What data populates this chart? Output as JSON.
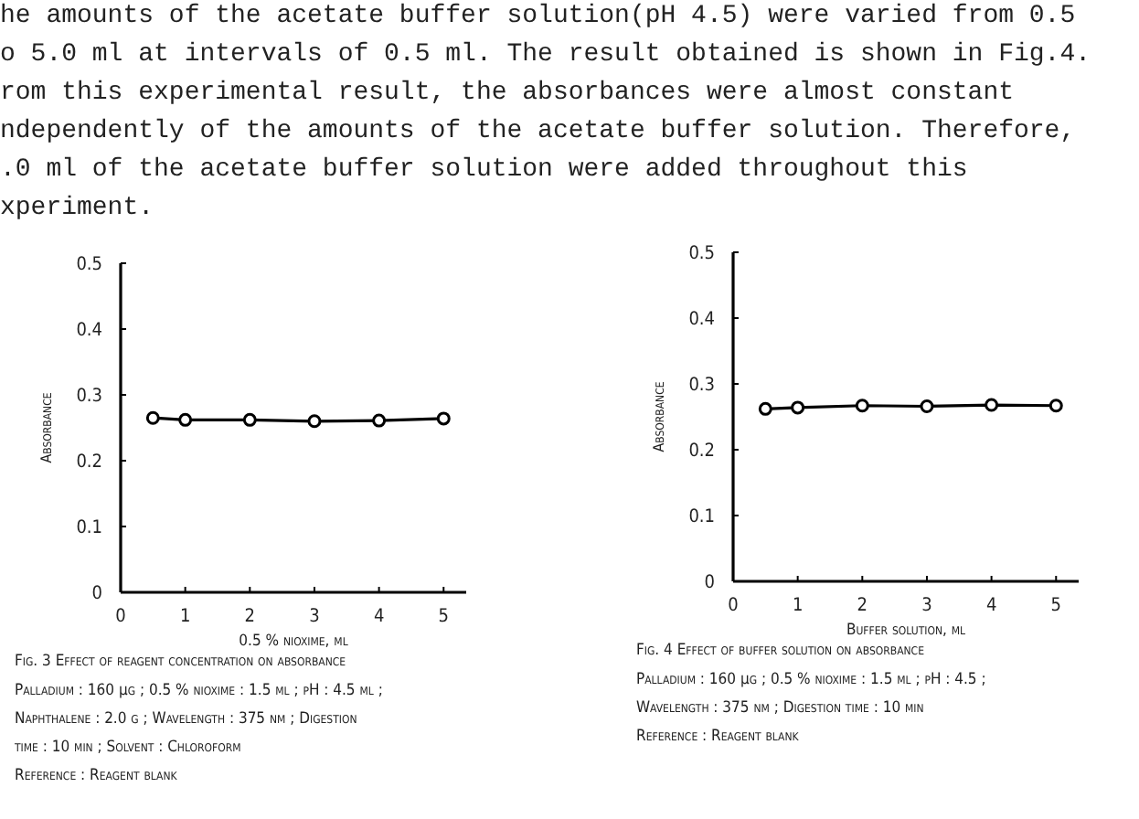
{
  "chart_data": [
    {
      "type": "other",
      "annotations": [
        "he amounts of the acetate buffer solution(pH 4.5) were varied from 0.5",
        "o 5.0 ml at intervals of 0.5 ml.   The result obtained is shown in Fig.4.",
        "rom this experimental result, the absorbances were almost constant",
        "ndependently of the amounts of the acetate buffer solution.   Therefore,",
        ".0 ml of the acetate buffer solution were added throughout this",
        "xperiment."
      ]
    },
    {
      "type": "line",
      "title": "Fig. 3  Effect of reagent concentration on absorbance",
      "xlabel": "0.5 % nioxime, ml",
      "ylabel": "Absorbance",
      "x": [
        0.5,
        1,
        2,
        3,
        4,
        5
      ],
      "series": [
        {
          "color": "#000000",
          "values": [
            0.265,
            0.262,
            0.262,
            0.26,
            0.261,
            0.264
          ]
        }
      ],
      "marker": "circle",
      "xlim": [
        0,
        5.35
      ],
      "xticks": [
        0,
        1,
        2,
        3,
        4,
        5
      ],
      "ylim": [
        0,
        0.5
      ],
      "yticks": [
        0,
        0.1,
        0.2,
        0.3,
        0.4,
        0.5
      ],
      "annotations": [
        "Palladium : 160 μg ; 0.5 % nioxime : 1.5 ml ; pH : 4.5 ml ;",
        "Naphthalene : 2.0 g ; Wavelength : 375 nm ; Digestion",
        "time : 10 min ;  Solvent : Chloroform",
        "Reference : Reagent blank"
      ]
    },
    {
      "type": "line",
      "title": "Fig. 4  Effect of buffer solution on absorbance",
      "xlabel": "Buffer solution, ml",
      "ylabel": "Absorbance",
      "x": [
        0.5,
        1,
        2,
        3,
        4,
        5
      ],
      "series": [
        {
          "color": "#000000",
          "values": [
            0.262,
            0.264,
            0.267,
            0.266,
            0.268,
            0.267
          ]
        }
      ],
      "marker": "circle",
      "xlim": [
        0,
        5.35
      ],
      "xticks": [
        0,
        1,
        2,
        3,
        4,
        5
      ],
      "ylim": [
        0,
        0.5
      ],
      "yticks": [
        0,
        0.1,
        0.2,
        0.3,
        0.4,
        0.5
      ],
      "annotations": [
        "Palladium : 160 μg ; 0.5 % nioxime : 1.5 ml ; pH : 4.5 ;",
        "Wavelength : 375 nm ; Digestion time : 10 min",
        "Reference : Reagent blank"
      ]
    }
  ]
}
